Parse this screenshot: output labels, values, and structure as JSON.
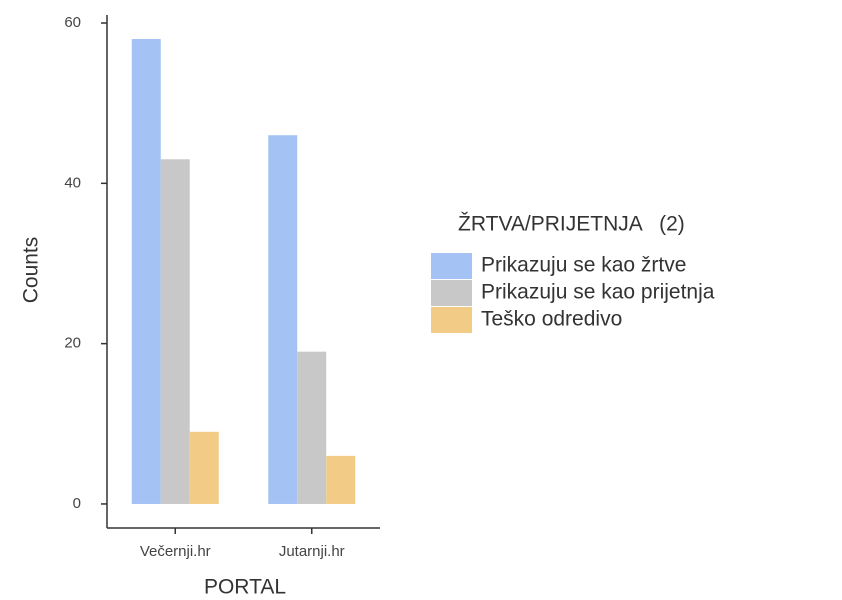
{
  "chart_data": {
    "type": "bar",
    "categories": [
      "Večernji.hr",
      "Jutarnji.hr"
    ],
    "series": [
      {
        "name": "Prikazuju se kao žrtve",
        "color": "#a4c2f4",
        "values": [
          58,
          46
        ]
      },
      {
        "name": "Prikazuju se kao prijetnja",
        "color": "#c8c8c8",
        "values": [
          43,
          19
        ]
      },
      {
        "name": "Teško odredivo",
        "color": "#f2cb86",
        "values": [
          9,
          6
        ]
      }
    ],
    "ylim": [
      -3,
      61
    ],
    "yticks": [
      0,
      20,
      40,
      60
    ],
    "x_label": "PORTAL",
    "y_label": "Counts",
    "legend_title": "ŽRTVA/PRIJETNJA   (2)",
    "legend_position": "right",
    "grid": false
  }
}
